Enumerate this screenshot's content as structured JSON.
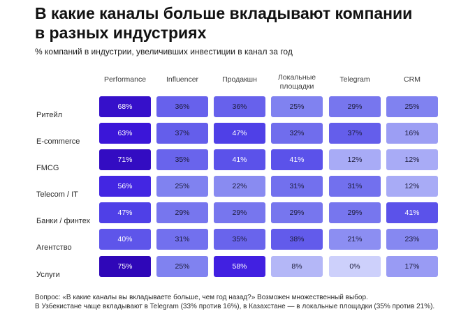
{
  "title": "В какие каналы больше вкладывают компании\nв разных индустриях",
  "subtitle": "% компаний в индустрии, увеличивших инвестиции в канал за год",
  "chart_data": {
    "type": "heatmap",
    "value_suffix": "%",
    "columns": [
      "Performance",
      "Influencer",
      "Продакшн",
      "Локальные площадки",
      "Telegram",
      "CRM"
    ],
    "rows": [
      "Ритейл",
      "E-commerce",
      "FMCG",
      "Telecom / IT",
      "Банки / финтех",
      "Агентство",
      "Услуги"
    ],
    "values": [
      [
        68,
        36,
        36,
        25,
        29,
        25
      ],
      [
        63,
        37,
        47,
        32,
        37,
        16
      ],
      [
        71,
        35,
        41,
        41,
        12,
        12
      ],
      [
        56,
        25,
        22,
        31,
        31,
        12
      ],
      [
        47,
        29,
        29,
        29,
        29,
        41
      ],
      [
        40,
        31,
        35,
        38,
        21,
        23
      ],
      [
        75,
        25,
        58,
        8,
        0,
        17
      ]
    ],
    "color_scale": [
      "#ecedfd",
      "#2f00b4"
    ]
  },
  "footnote": "Вопрос: «В какие каналы вы вкладываете больше, чем год назад?» Возможен множественный выбор.\nВ Узбекистане чаще вкладывают в Telegram (33% против 16%), в Казахстане — в локальные площадки (35% против 21%)."
}
